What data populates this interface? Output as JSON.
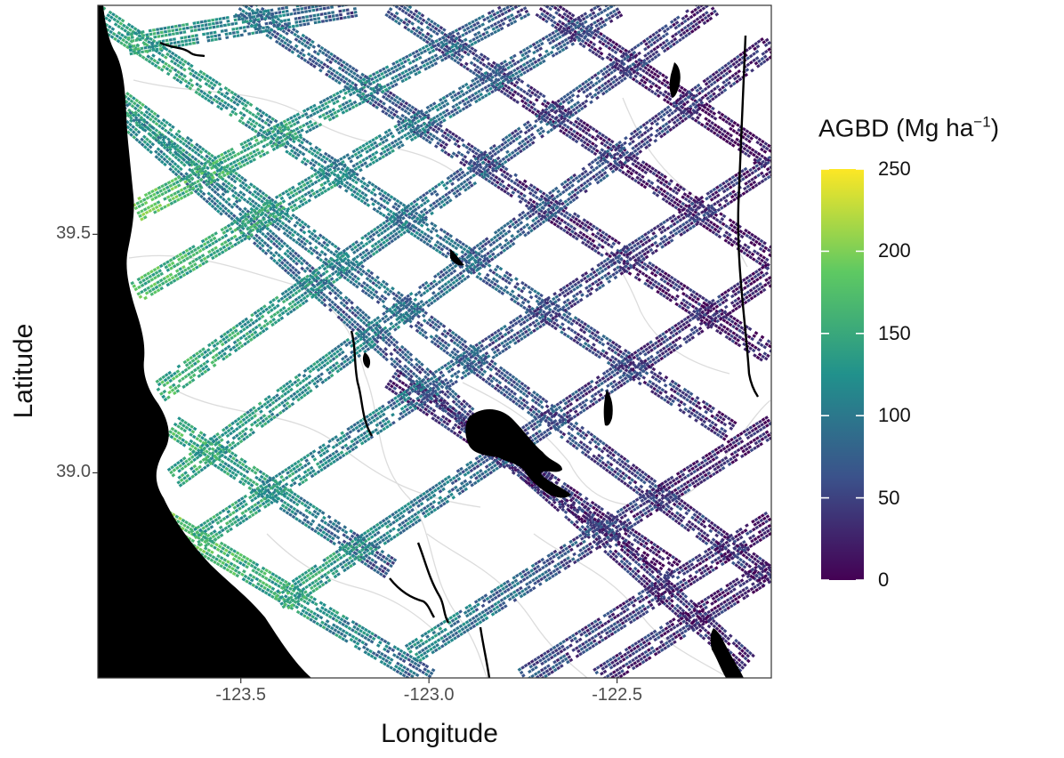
{
  "chart_data": {
    "type": "map",
    "xlabel": "Longitude",
    "ylabel": "Latitude",
    "xlim": [
      -123.88,
      -122.09
    ],
    "ylim": [
      38.57,
      39.98
    ],
    "x_ticks": [
      {
        "value": -123.5,
        "label": "-123.5"
      },
      {
        "value": -123.0,
        "label": "-123.0"
      },
      {
        "value": -122.5,
        "label": "-122.5"
      }
    ],
    "y_ticks": [
      {
        "value": 39.5,
        "label": "39.5"
      },
      {
        "value": 39.0,
        "label": "39.0"
      }
    ],
    "grid": false,
    "legend": {
      "title_main": "AGBD",
      "title_unit_open": "(Mg ha",
      "title_unit_exp": "−1",
      "title_unit_close": ")",
      "placement": "right",
      "colormap": "viridis",
      "range": [
        0,
        250
      ],
      "ticks": [
        {
          "value": 250,
          "label": "250"
        },
        {
          "value": 200,
          "label": "200"
        },
        {
          "value": 150,
          "label": "150"
        },
        {
          "value": 100,
          "label": "100"
        },
        {
          "value": 50,
          "label": "50"
        },
        {
          "value": 0,
          "label": "0"
        }
      ]
    },
    "colors": {
      "land": "#ffffff",
      "ocean": "#000000",
      "lakes": "#000000",
      "rivers": "#000000",
      "roads": "#d9d9d9",
      "viridis": [
        "#440154",
        "#3b528b",
        "#21918c",
        "#5ec962",
        "#fde725"
      ]
    },
    "tracks": [
      {
        "from": [
          -123.88,
          39.96
        ],
        "to": [
          -122.2,
          39.09
        ],
        "agbd": [
          150,
          90,
          30
        ]
      },
      {
        "from": [
          -123.5,
          39.98
        ],
        "to": [
          -122.09,
          39.25
        ],
        "agbd": [
          90,
          40,
          20
        ]
      },
      {
        "from": [
          -123.1,
          39.98
        ],
        "to": [
          -122.09,
          39.45
        ],
        "agbd": [
          70,
          30,
          15
        ]
      },
      {
        "from": [
          -122.7,
          39.98
        ],
        "to": [
          -122.09,
          39.66
        ],
        "agbd": [
          40,
          20,
          10
        ]
      },
      {
        "from": [
          -123.72,
          38.91
        ],
        "to": [
          -123.0,
          38.57
        ],
        "agbd": [
          180,
          140,
          70
        ]
      },
      {
        "from": [
          -123.85,
          39.8
        ],
        "to": [
          -122.09,
          38.78
        ],
        "agbd": [
          150,
          70,
          30
        ]
      },
      {
        "from": [
          -123.8,
          39.9
        ],
        "to": [
          -123.2,
          39.98
        ],
        "agbd": [
          150,
          110,
          60
        ]
      },
      {
        "from": [
          -123.68,
          39.1
        ],
        "to": [
          -123.1,
          38.8
        ],
        "agbd": [
          160,
          120,
          60
        ]
      },
      {
        "from": [
          -123.88,
          39.8
        ],
        "to": [
          -122.15,
          38.6
        ],
        "agbd": [
          130,
          60,
          25
        ]
      },
      {
        "from": [
          -123.1,
          39.2
        ],
        "to": [
          -122.35,
          38.8
        ],
        "agbd": [
          40,
          30,
          20
        ]
      },
      {
        "from": [
          -123.78,
          39.55
        ],
        "to": [
          -122.75,
          39.98
        ],
        "agbd": [
          180,
          120,
          60
        ]
      },
      {
        "from": [
          -123.78,
          39.38
        ],
        "to": [
          -122.5,
          39.98
        ],
        "agbd": [
          170,
          110,
          50
        ]
      },
      {
        "from": [
          -123.72,
          39.17
        ],
        "to": [
          -122.25,
          39.98
        ],
        "agbd": [
          160,
          90,
          30
        ]
      },
      {
        "from": [
          -123.68,
          38.99
        ],
        "to": [
          -122.09,
          39.9
        ],
        "agbd": [
          150,
          80,
          25
        ]
      },
      {
        "from": [
          -123.62,
          38.86
        ],
        "to": [
          -122.09,
          39.65
        ],
        "agbd": [
          150,
          70,
          25
        ]
      },
      {
        "from": [
          -123.4,
          38.73
        ],
        "to": [
          -122.09,
          39.42
        ],
        "agbd": [
          150,
          60,
          20
        ]
      },
      {
        "from": [
          -123.05,
          38.62
        ],
        "to": [
          -122.09,
          39.1
        ],
        "agbd": [
          120,
          50,
          20
        ]
      },
      {
        "from": [
          -122.75,
          38.57
        ],
        "to": [
          -122.09,
          38.9
        ],
        "agbd": [
          60,
          40,
          20
        ]
      },
      {
        "from": [
          -122.55,
          38.57
        ],
        "to": [
          -122.09,
          38.8
        ],
        "agbd": [
          40,
          30,
          20
        ]
      }
    ]
  }
}
